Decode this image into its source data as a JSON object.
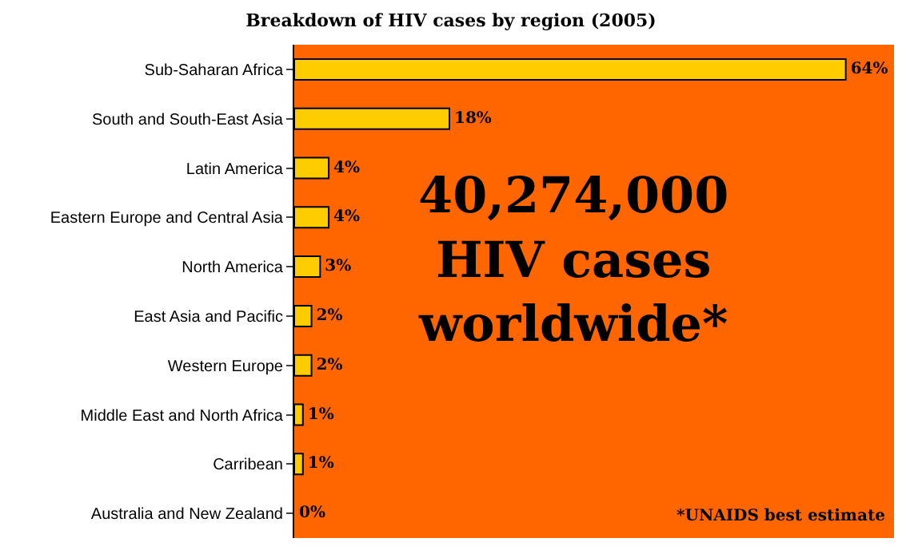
{
  "chart_data": {
    "type": "bar",
    "orientation": "horizontal",
    "title": "Breakdown of HIV cases by region (2005)",
    "categories": [
      "Sub-Saharan Africa",
      "South and South-East Asia",
      "Latin America",
      "Eastern Europe and Central Asia",
      "North America",
      "East Asia and Pacific",
      "Western Europe",
      "Middle East and North Africa",
      "Carribean",
      "Australia and New Zealand"
    ],
    "values": [
      64,
      18,
      4,
      4,
      3,
      2,
      2,
      1,
      1,
      0
    ],
    "value_labels": [
      "64%",
      "18%",
      "4%",
      "4%",
      "3%",
      "2%",
      "2%",
      "1%",
      "1%",
      "0%"
    ],
    "color": "#ffcc00",
    "xlim": [
      0,
      69.6
    ],
    "tick_labels": "y",
    "grid": false,
    "legend": false,
    "annotations": [
      "40,274,000\nHIV cases\nworldwide*",
      "*UNAIDS best estimate"
    ]
  }
}
